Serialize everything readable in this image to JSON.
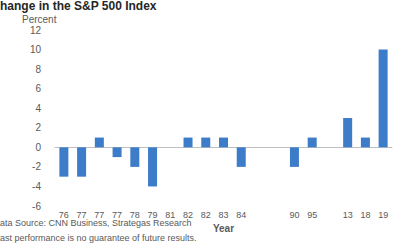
{
  "chart_data": {
    "type": "bar",
    "title": "hange in the S&P 500 Index",
    "y_label": "Percent",
    "x_label": "Year",
    "annotations": [
      "ata Source: CNN Business, Strategas Research",
      "ast performance is no guarantee of future results."
    ],
    "categories": [
      "76",
      "77",
      "77",
      "77",
      "78",
      "79",
      "81",
      "82",
      "82",
      "83",
      "84",
      null,
      null,
      "90",
      "95",
      null,
      "13",
      "18",
      "19"
    ],
    "values": [
      -3,
      -3,
      1,
      -1,
      -2,
      -4,
      0,
      1,
      1,
      1,
      -2,
      null,
      null,
      -2,
      1,
      null,
      3,
      1,
      10
    ],
    "color": "#3d7cc9",
    "ylim": [
      -6,
      12
    ],
    "yticks": [
      -6,
      -4,
      -2,
      0,
      2,
      4,
      6,
      8,
      10,
      12
    ],
    "grid": false
  }
}
